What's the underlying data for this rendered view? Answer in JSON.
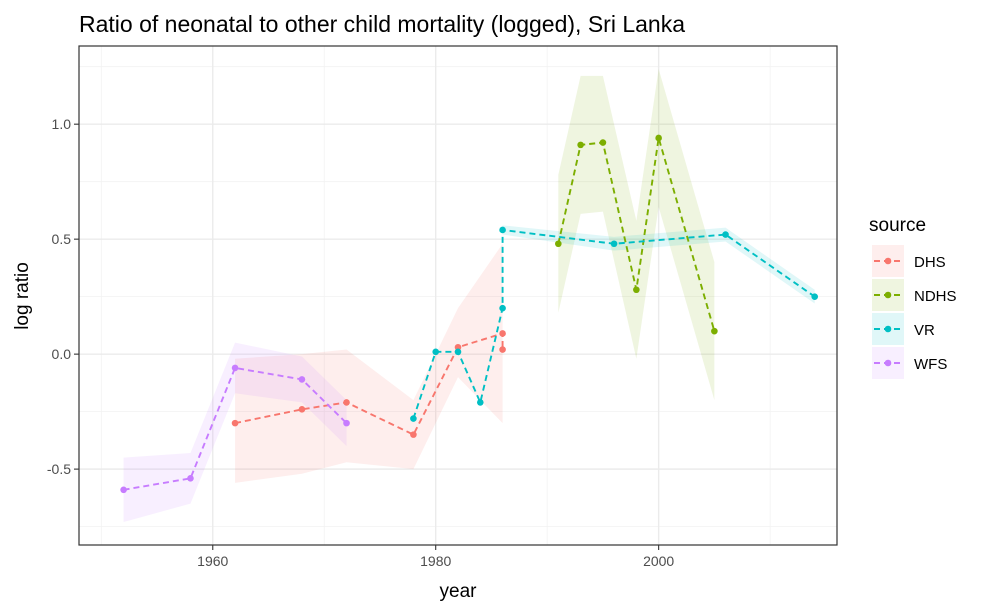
{
  "chart_data": {
    "type": "line",
    "title": "Ratio of neonatal to other child mortality (logged), Sri Lanka",
    "xlabel": "year",
    "ylabel": "log ratio",
    "xlim": [
      1948,
      2016
    ],
    "ylim": [
      -0.83,
      1.34
    ],
    "x_ticks": [
      1960,
      1980,
      2000
    ],
    "y_ticks": [
      -0.5,
      0.0,
      0.5,
      1.0
    ],
    "x_tick_labels": [
      "1960",
      "1980",
      "2000"
    ],
    "y_tick_labels": [
      "-0.5",
      "0.0",
      "0.5",
      "1.0"
    ],
    "grid": true,
    "legend_position": "right",
    "legend_title": "source",
    "series": [
      {
        "name": "DHS",
        "color": "#F8766D",
        "points": [
          {
            "x": 1962,
            "y": -0.3,
            "lo": -0.56,
            "hi": -0.02
          },
          {
            "x": 1968,
            "y": -0.24,
            "lo": -0.52,
            "hi": 0.0
          },
          {
            "x": 1972,
            "y": -0.21,
            "lo": -0.47,
            "hi": 0.02
          },
          {
            "x": 1978,
            "y": -0.35,
            "lo": -0.5,
            "hi": -0.2
          },
          {
            "x": 1982,
            "y": 0.03,
            "lo": -0.1,
            "hi": 0.2
          },
          {
            "x": 1986,
            "y": 0.09,
            "lo": -0.3,
            "hi": 0.48
          },
          {
            "x": 1986,
            "y": 0.02,
            "lo": -0.34,
            "hi": 0.4
          }
        ]
      },
      {
        "name": "NDHS",
        "color": "#7CAE00",
        "points": [
          {
            "x": 1991,
            "y": 0.48,
            "lo": 0.18,
            "hi": 0.78
          },
          {
            "x": 1993,
            "y": 0.91,
            "lo": 0.61,
            "hi": 1.21
          },
          {
            "x": 1995,
            "y": 0.92,
            "lo": 0.62,
            "hi": 1.21
          },
          {
            "x": 1998,
            "y": 0.28,
            "lo": -0.02,
            "hi": 0.58
          },
          {
            "x": 2000,
            "y": 0.94,
            "lo": 0.64,
            "hi": 1.24
          },
          {
            "x": 2005,
            "y": 0.1,
            "lo": -0.2,
            "hi": 0.4
          }
        ]
      },
      {
        "name": "VR",
        "color": "#00BFC4",
        "points": [
          {
            "x": 1978,
            "y": -0.28,
            "lo": -0.28,
            "hi": -0.28
          },
          {
            "x": 1980,
            "y": 0.01,
            "lo": 0.01,
            "hi": 0.01
          },
          {
            "x": 1982,
            "y": 0.01,
            "lo": 0.01,
            "hi": 0.01
          },
          {
            "x": 1984,
            "y": -0.21,
            "lo": -0.21,
            "hi": -0.21
          },
          {
            "x": 1986,
            "y": 0.2,
            "lo": 0.2,
            "hi": 0.2
          },
          {
            "x": 1986,
            "y": 0.54,
            "lo": 0.52,
            "hi": 0.56
          },
          {
            "x": 1996,
            "y": 0.48,
            "lo": 0.45,
            "hi": 0.51
          },
          {
            "x": 2006,
            "y": 0.52,
            "lo": 0.49,
            "hi": 0.55
          },
          {
            "x": 2014,
            "y": 0.25,
            "lo": 0.22,
            "hi": 0.28
          }
        ]
      },
      {
        "name": "WFS",
        "color": "#C77CFF",
        "points": [
          {
            "x": 1952,
            "y": -0.59,
            "lo": -0.73,
            "hi": -0.45
          },
          {
            "x": 1958,
            "y": -0.54,
            "lo": -0.65,
            "hi": -0.43
          },
          {
            "x": 1962,
            "y": -0.06,
            "lo": -0.17,
            "hi": 0.05
          },
          {
            "x": 1968,
            "y": -0.11,
            "lo": -0.21,
            "hi": -0.01
          },
          {
            "x": 1972,
            "y": -0.3,
            "lo": -0.4,
            "hi": -0.2
          }
        ]
      }
    ]
  }
}
